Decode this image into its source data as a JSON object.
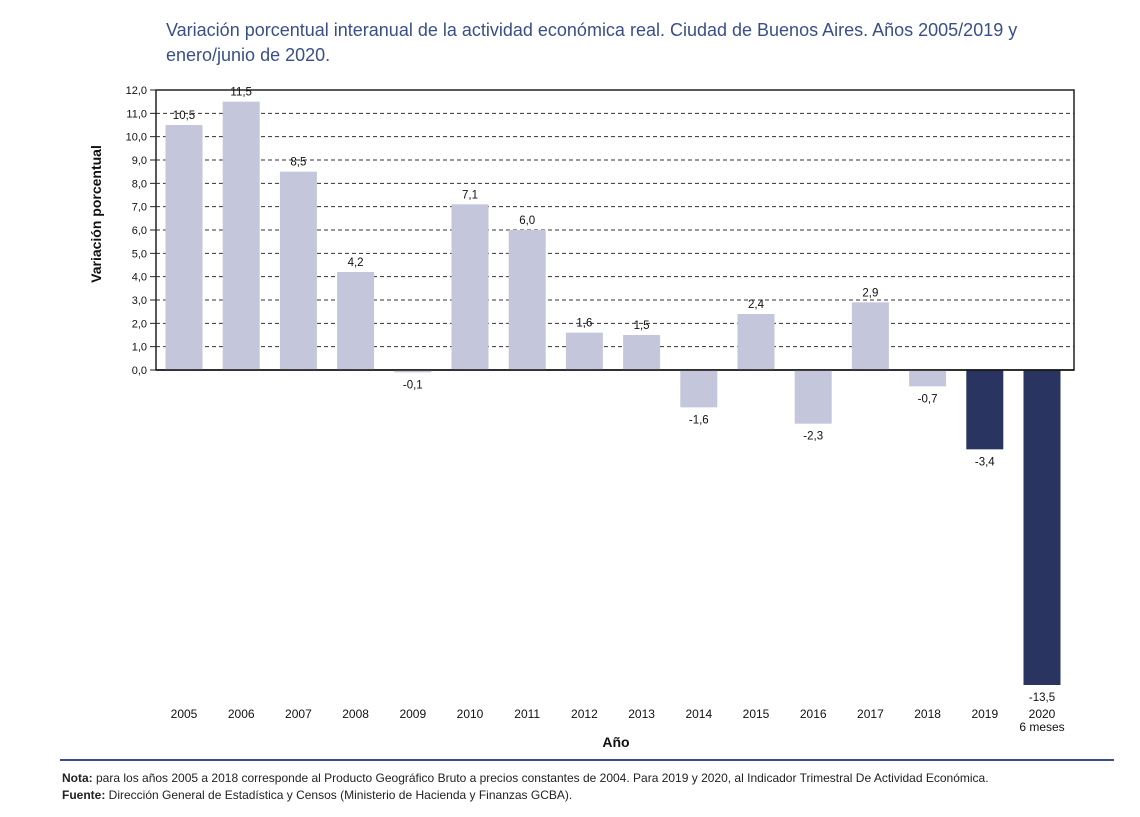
{
  "title": "Variación porcentual interanual de la actividad económica real. Ciudad de Buenos Aires. Años 2005/2019 y enero/junio de 2020.",
  "chart_data": {
    "type": "bar",
    "categories": [
      "2005",
      "2006",
      "2007",
      "2008",
      "2009",
      "2010",
      "2011",
      "2012",
      "2013",
      "2014",
      "2015",
      "2016",
      "2017",
      "2018",
      "2019",
      "2020"
    ],
    "category_sublabels": {
      "2020": "6 meses"
    },
    "values": [
      10.5,
      11.5,
      8.5,
      4.2,
      -0.1,
      7.1,
      6.0,
      1.6,
      1.5,
      -1.6,
      2.4,
      -2.3,
      2.9,
      -0.7,
      -3.4,
      -13.5
    ],
    "value_labels": [
      "10,5",
      "11,5",
      "8,5",
      "4,2",
      "-0,1",
      "7,1",
      "6,0",
      "1,6",
      "1,5",
      "-1,6",
      "2,4",
      "-2,3",
      "2,9",
      "-0,7",
      "-3,4",
      "-13,5"
    ],
    "bar_colors": [
      "#c4c6dc",
      "#c4c6dc",
      "#c4c6dc",
      "#c4c6dc",
      "#c4c6dc",
      "#c4c6dc",
      "#c4c6dc",
      "#c4c6dc",
      "#c4c6dc",
      "#c4c6dc",
      "#c4c6dc",
      "#c4c6dc",
      "#c4c6dc",
      "#c4c6dc",
      "#2a3461",
      "#2a3461"
    ],
    "xlabel": "Año",
    "ylabel": "Variación porcentual",
    "ylim": [
      0,
      12
    ],
    "yticks": [
      "0,0",
      "1,0",
      "2,0",
      "3,0",
      "4,0",
      "5,0",
      "6,0",
      "7,0",
      "8,0",
      "9,0",
      "10,0",
      "11,0",
      "12,0"
    ],
    "grid": true
  },
  "footer": {
    "note_label": "Nota:",
    "note_text": " para los años 2005 a 2018 corresponde al Producto Geográfico Bruto a precios constantes de 2004. Para 2019 y 2020, al Indicador Trimestral De Actividad Económica.",
    "source_label": "Fuente:",
    "source_text": " Dirección General de Estadística y Censos (Ministerio de Hacienda y Finanzas GCBA)."
  },
  "colors": {
    "title": "#3a4f8a",
    "rule": "#3a4f8a",
    "light_bar": "#c4c6dc",
    "dark_bar": "#2a3461"
  }
}
